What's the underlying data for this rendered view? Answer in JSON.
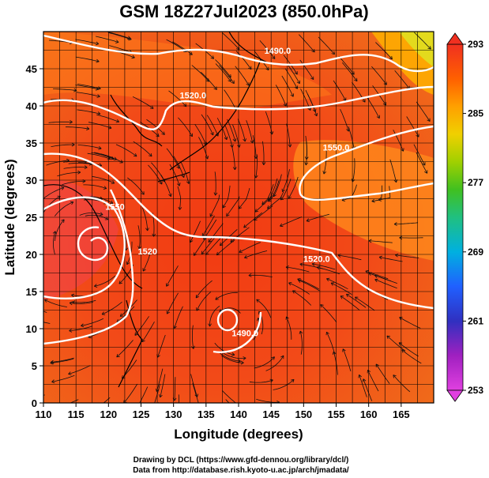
{
  "title": "GSM 18Z27Jul2023 (850.0hPa)",
  "xlabel": "Longitude (degrees)",
  "ylabel": "Latitude  (degrees)",
  "credits": {
    "line1": "Drawing by DCL (https://www.gfd-dennou.org/library/dcl/)",
    "line2": "Data from http://database.rish.kyoto-u.ac.jp/arch/jmadata/"
  },
  "chart_data": {
    "type": "heatmap",
    "field": "temperature with streamlines and geopotential height contours",
    "xlim": [
      110,
      170
    ],
    "ylim": [
      0,
      50
    ],
    "xticks": [
      110,
      115,
      120,
      125,
      130,
      135,
      140,
      145,
      150,
      155,
      160,
      165
    ],
    "yticks": [
      0,
      5,
      10,
      15,
      20,
      25,
      30,
      35,
      40,
      45
    ],
    "colorbar": {
      "min": 253,
      "max": 293,
      "ticks": [
        253,
        261,
        269,
        277,
        285,
        293
      ],
      "colors": [
        "#e040e0",
        "#a020c0",
        "#3030c0",
        "#2060ff",
        "#00b0e0",
        "#20c080",
        "#40c020",
        "#a0d000",
        "#f0d000",
        "#ffa000",
        "#ff6000",
        "#f03020"
      ]
    },
    "contour_labels": [
      {
        "text": "1490.0",
        "lon": 146,
        "lat": 47
      },
      {
        "text": "1520.0",
        "lon": 133,
        "lat": 41
      },
      {
        "text": "1550.0",
        "lon": 155,
        "lat": 34
      },
      {
        "text": "1520.0",
        "lon": 152,
        "lat": 19
      },
      {
        "text": "1550",
        "lon": 121,
        "lat": 26
      },
      {
        "text": "1520",
        "lon": 126,
        "lat": 20
      },
      {
        "text": "1490.0",
        "lon": 141,
        "lat": 9
      }
    ]
  }
}
